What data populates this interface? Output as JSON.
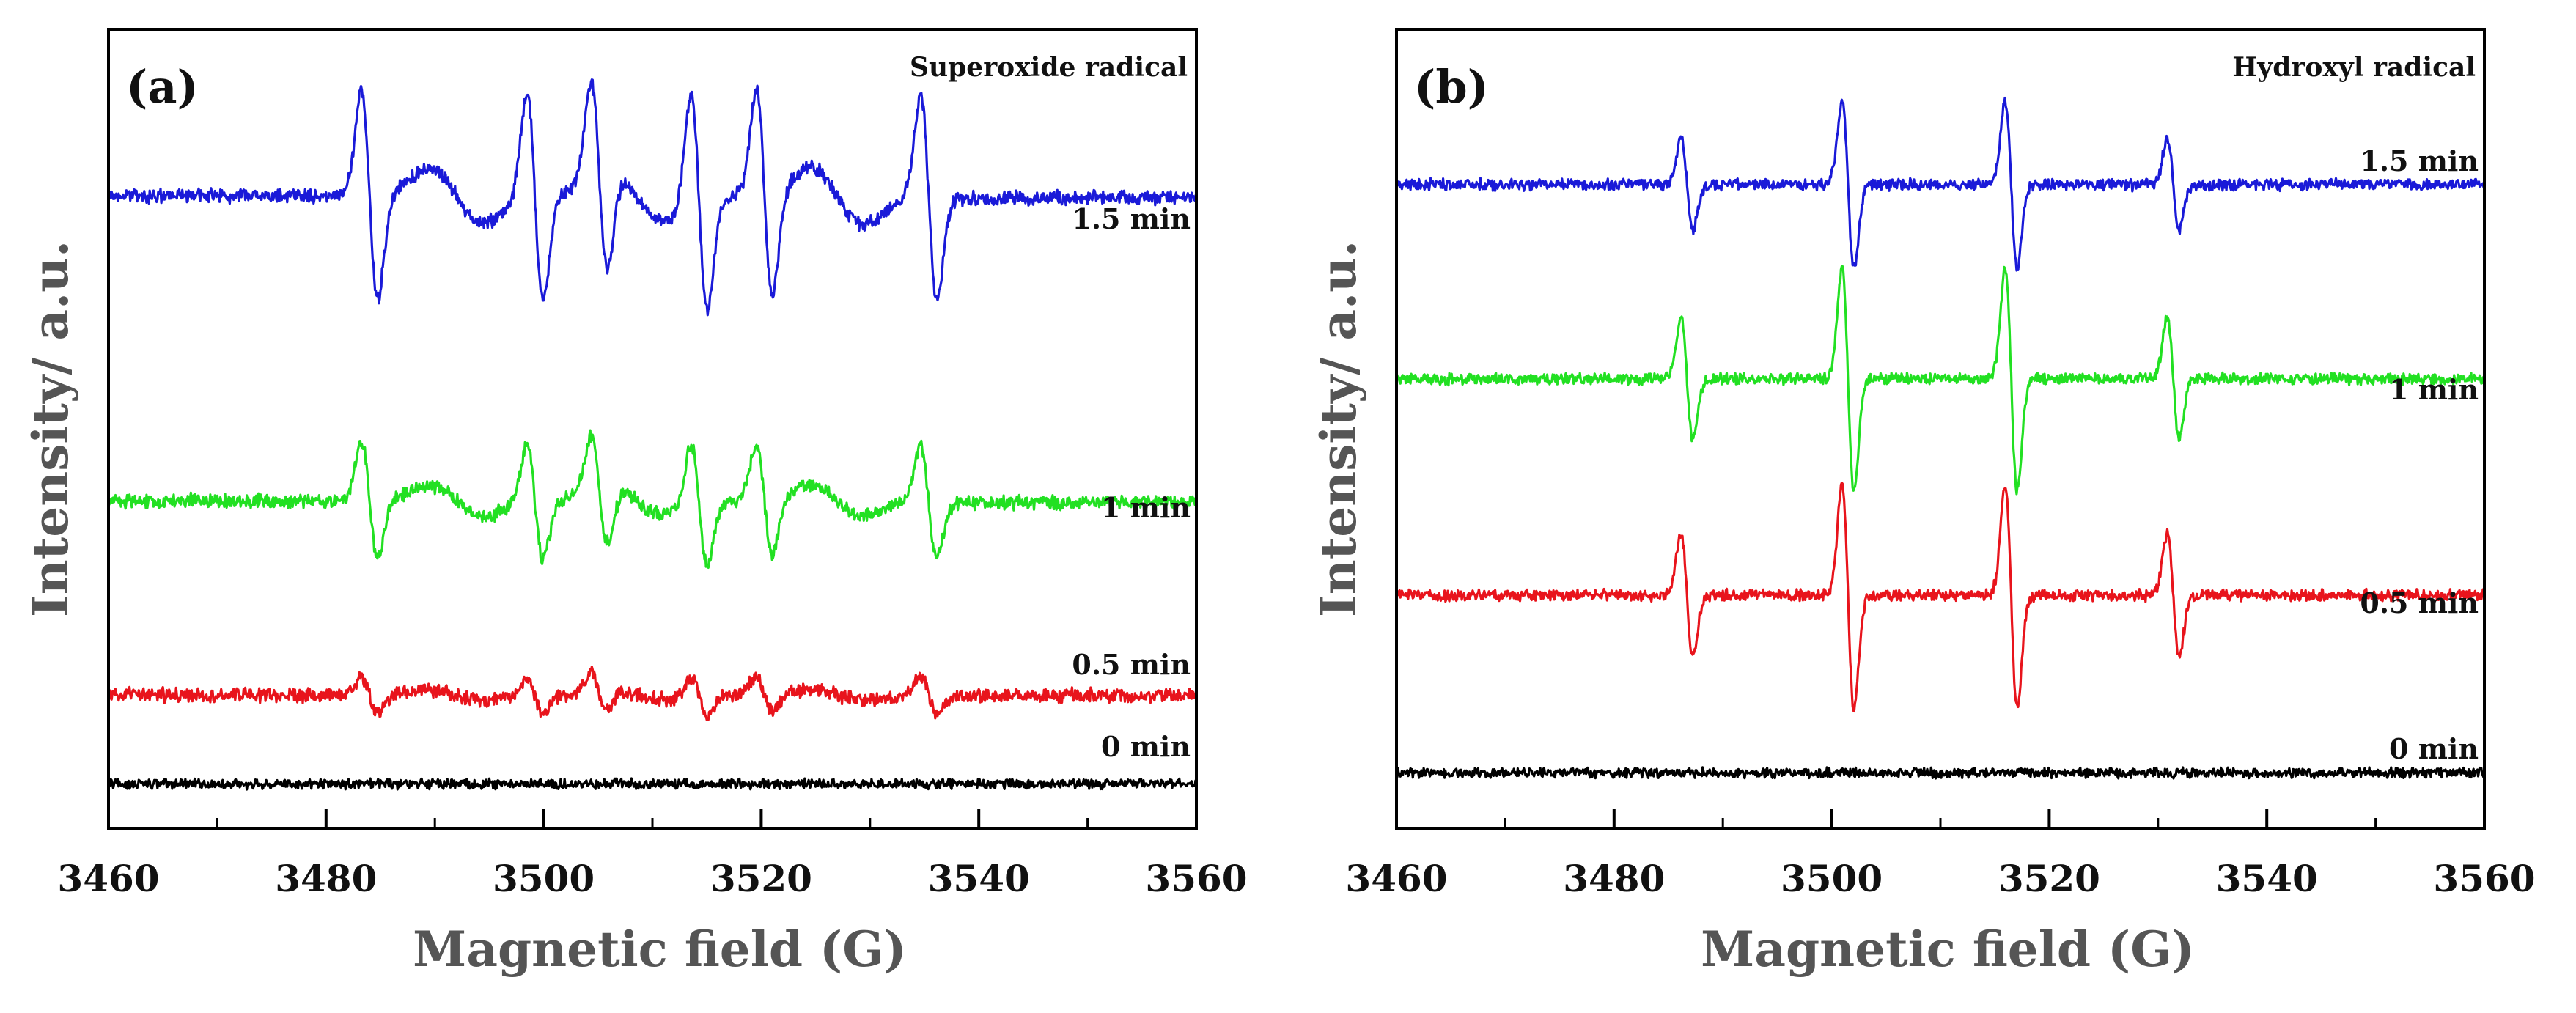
{
  "figure": {
    "y_axis_label": "Intensity/ a.u.",
    "x_axis_label": "Magnetic field (G)"
  },
  "chart_data": [
    {
      "type": "line",
      "panel_label": "(a)",
      "title": "Superoxide radical",
      "xlabel": "Magnetic field (G)",
      "ylabel": "Intensity/ a.u.",
      "xlim": [
        3460,
        3560
      ],
      "xticks": [
        3460,
        3480,
        3500,
        3520,
        3540,
        3560
      ],
      "yticks_shown": false,
      "signal": "superoxide",
      "line_positions_G": [
        3483.5,
        3498.7,
        3504.6,
        3513.8,
        3519.8,
        3534.9
      ],
      "series": [
        {
          "name": "0 min",
          "color": "#000000",
          "baseline": 0.2,
          "amplitude": 0.0,
          "noise": 0.035
        },
        {
          "name": "0.5 min",
          "color": "#e8141c",
          "baseline": 1.0,
          "amplitude": 0.18,
          "noise": 0.05
        },
        {
          "name": "1 min",
          "color": "#22e022",
          "baseline": 2.75,
          "amplitude": 0.55,
          "noise": 0.05
        },
        {
          "name": "1.5 min",
          "color": "#1a1ad8",
          "baseline": 5.5,
          "amplitude": 1.0,
          "noise": 0.05
        }
      ]
    },
    {
      "type": "line",
      "panel_label": "(b)",
      "title": "Hydroxyl radical",
      "xlabel": "Magnetic field (G)",
      "ylabel": "Intensity/ a.u.",
      "xlim": [
        3460,
        3560
      ],
      "xticks": [
        3460,
        3480,
        3500,
        3520,
        3540,
        3560
      ],
      "yticks_shown": false,
      "signal": "hydroxyl",
      "line_positions_G": [
        3486.7,
        3501.5,
        3516.5,
        3531.4
      ],
      "series": [
        {
          "name": "0 min",
          "color": "#000000",
          "baseline": 0.3,
          "amplitude": 0.0,
          "noise": 0.035
        },
        {
          "name": "0.5 min",
          "color": "#e8141c",
          "baseline": 1.9,
          "amplitude": 1.0,
          "noise": 0.04
        },
        {
          "name": "1 min",
          "color": "#22e022",
          "baseline": 3.85,
          "amplitude": 1.0,
          "noise": 0.04
        },
        {
          "name": "1.5 min",
          "color": "#1a1ad8",
          "baseline": 5.6,
          "amplitude": 0.75,
          "noise": 0.04
        }
      ]
    }
  ]
}
